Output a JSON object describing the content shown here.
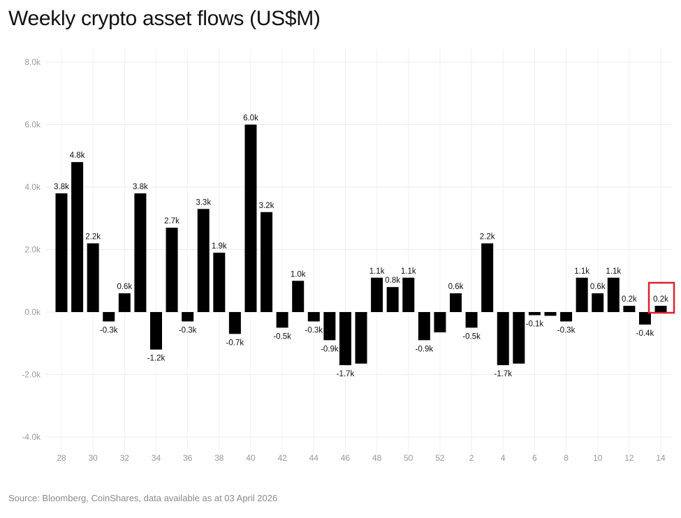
{
  "chart_data": {
    "type": "bar",
    "title": "Weekly crypto asset flows (US$M)",
    "source": "Source: Bloomberg, CoinShares, data available as at 03 April 2026",
    "xlabel": "",
    "ylabel": "",
    "ylim": [
      -4.0,
      8.0
    ],
    "y_ticks": [
      "8.0k",
      "6.0k",
      "4.0k",
      "2.0k",
      "0.0k",
      "-2.0k",
      "-4.0k"
    ],
    "y_tick_values": [
      8,
      6,
      4,
      2,
      0,
      -2,
      -4
    ],
    "grid": true,
    "categories": [
      "28",
      "29",
      "30",
      "31",
      "32",
      "33",
      "34",
      "35",
      "36",
      "37",
      "38",
      "39",
      "40",
      "41",
      "42",
      "43",
      "44",
      "45",
      "46",
      "47",
      "48",
      "49",
      "50",
      "51",
      "52",
      "1",
      "2",
      "3",
      "4",
      "5",
      "6",
      "7",
      "8",
      "9",
      "10",
      "11",
      "12",
      "13",
      "14"
    ],
    "x_tick_labels": [
      "28",
      "",
      "30",
      "",
      "32",
      "",
      "34",
      "",
      "36",
      "",
      "38",
      "",
      "40",
      "",
      "42",
      "",
      "44",
      "",
      "46",
      "",
      "48",
      "",
      "50",
      "",
      "52",
      "",
      "2",
      "",
      "4",
      "",
      "6",
      "",
      "8",
      "",
      "10",
      "",
      "12",
      "",
      "14"
    ],
    "values": [
      3.8,
      4.8,
      2.2,
      -0.3,
      0.6,
      3.8,
      -1.2,
      2.7,
      -0.3,
      3.3,
      1.9,
      -0.7,
      6.0,
      3.2,
      -0.5,
      1.0,
      -0.3,
      -0.9,
      -1.7,
      -1.65,
      1.1,
      0.8,
      1.1,
      -0.9,
      -0.65,
      0.6,
      -0.5,
      2.2,
      -1.7,
      -1.65,
      -0.1,
      -0.12,
      -0.3,
      1.1,
      0.6,
      1.1,
      0.2,
      -0.4,
      0.2
    ],
    "data_labels": [
      "3.8k",
      "4.8k",
      "2.2k",
      "-0.3k",
      "0.6k",
      "3.8k",
      "-1.2k",
      "2.7k",
      "-0.3k",
      "3.3k",
      "1.9k",
      "-0.7k",
      "6.0k",
      "3.2k",
      "-0.5k",
      "1.0k",
      "-0.3k",
      "-0.9k",
      "-1.7k",
      "",
      "1.1k",
      "0.8k",
      "1.1k",
      "-0.9k",
      "",
      "0.6k",
      "-0.5k",
      "2.2k",
      "-1.7k",
      "",
      "-0.1k",
      "",
      "-0.3k",
      "1.1k",
      "0.6k",
      "1.1k",
      "0.2k",
      "-0.4k",
      "0.2k"
    ],
    "bar_color": "#000000",
    "highlight": {
      "index": 38,
      "color": "#d9232d"
    }
  }
}
